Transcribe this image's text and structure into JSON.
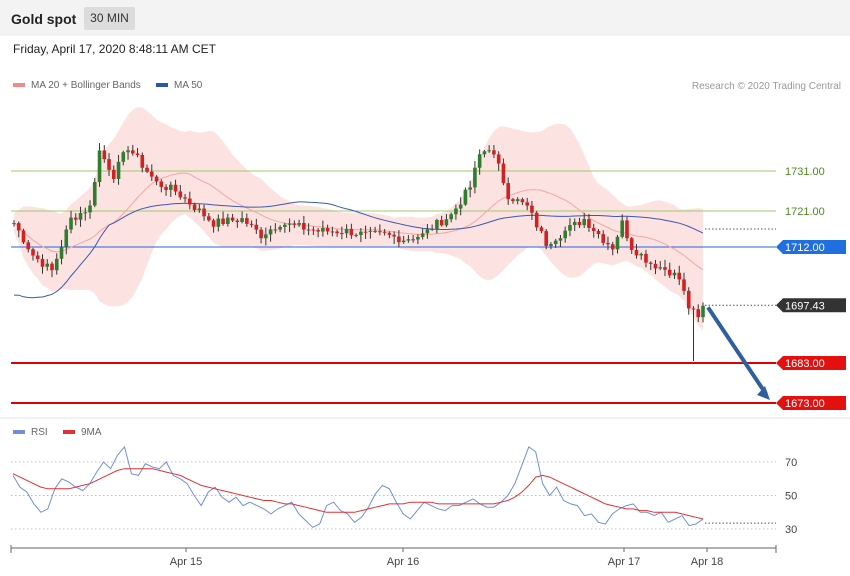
{
  "header": {
    "title": "Gold spot",
    "timeframe": "30 MIN",
    "datetime": "Friday, April 17, 2020 8:48:11 AM CET"
  },
  "legend": {
    "ma20_label": "MA 20 + Bollinger Bands",
    "ma50_label": "MA 50",
    "credit": "Research © 2020 Trading Central",
    "rsi_label": "RSI",
    "rsi_ma_label": "9MA"
  },
  "colors": {
    "up": "#2f7d2f",
    "down": "#d42020",
    "band": "#fde2e2",
    "ma20": "#f4a6a0",
    "ma50": "#3a58b0",
    "support": "#e00000",
    "pivot": "#2266dd",
    "resistance": "#9ccb6a",
    "arrow": "#2e5fa1",
    "rsi": "#6f8fdc",
    "rsi_ma": "#e33030"
  },
  "chart_data": [
    {
      "type": "candlestick",
      "title": "Gold spot",
      "ylim": [
        1665,
        1752
      ],
      "x_labels": [
        "Apr 15",
        "Apr 16",
        "Apr 17",
        "Apr 18"
      ],
      "levels": [
        {
          "label": "1731.00",
          "value": 1731,
          "kind": "resistance"
        },
        {
          "label": "1721.00",
          "value": 1721,
          "kind": "resistance"
        },
        {
          "label": "1712.00",
          "value": 1712,
          "kind": "pivot"
        },
        {
          "label": "1697.43",
          "value": 1697.43,
          "kind": "last"
        },
        {
          "label": "1683.00",
          "value": 1683,
          "kind": "support"
        },
        {
          "label": "1673.00",
          "value": 1673,
          "kind": "support"
        }
      ],
      "forecast_arrow": {
        "from": 1697.4,
        "to": 1673.0
      }
    },
    {
      "type": "line",
      "title": "RSI",
      "ylim": [
        25,
        85
      ],
      "yticks": [
        "70",
        "50",
        "30"
      ],
      "series": [
        {
          "name": "RSI",
          "values": [
            62,
            55,
            52,
            45,
            40,
            42,
            54,
            60,
            58,
            55,
            53,
            57,
            64,
            70,
            66,
            74,
            79,
            63,
            62,
            69,
            67,
            66,
            70,
            62,
            60,
            57,
            50,
            44,
            52,
            55,
            49,
            46,
            49,
            44,
            46,
            44,
            42,
            39,
            42,
            44,
            46,
            39,
            35,
            31,
            33,
            44,
            46,
            41,
            39,
            34,
            37,
            43,
            51,
            56,
            54,
            46,
            39,
            36,
            41,
            46,
            44,
            42,
            41,
            44,
            44,
            46,
            48,
            45,
            43,
            43,
            46,
            50,
            57,
            68,
            79,
            76,
            57,
            50,
            55,
            47,
            45,
            44,
            38,
            39,
            34,
            33,
            39,
            42,
            44,
            45,
            40,
            40,
            38,
            40,
            34,
            36,
            38,
            32,
            33,
            36
          ]
        },
        {
          "name": "9MA",
          "values": [
            63,
            61,
            59,
            57,
            55,
            54,
            54,
            54,
            54,
            55,
            56,
            57,
            59,
            61,
            63,
            65,
            66,
            66,
            66,
            66,
            66,
            65,
            64,
            63,
            62,
            60,
            58,
            56,
            55,
            54,
            53,
            52,
            51,
            50,
            49,
            48,
            47,
            47,
            46,
            45,
            45,
            44,
            43,
            42,
            41,
            40,
            40,
            40,
            40,
            40,
            41,
            42,
            43,
            44,
            45,
            45,
            45,
            46,
            46,
            46,
            46,
            45,
            45,
            45,
            45,
            45,
            45,
            45,
            45,
            45,
            46,
            47,
            49,
            52,
            56,
            61,
            62,
            61,
            59,
            57,
            55,
            53,
            51,
            49,
            47,
            45,
            44,
            43,
            42,
            42,
            41,
            41,
            40,
            40,
            40,
            40,
            39,
            38,
            37,
            36
          ]
        }
      ]
    }
  ]
}
